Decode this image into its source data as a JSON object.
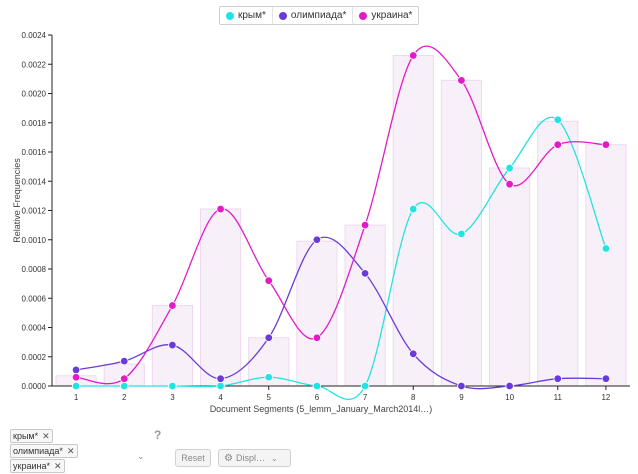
{
  "legend": [
    {
      "label": "крым*",
      "color": "#22e3e3"
    },
    {
      "label": "олимпиада*",
      "color": "#6a3bd8"
    },
    {
      "label": "украина*",
      "color": "#e31ac8"
    }
  ],
  "chart_data": {
    "type": "line",
    "xlabel": "Document Segments (5_lemm_January_March2014l…)",
    "ylabel": "Relative Frequencies",
    "ylim": [
      0,
      0.0024
    ],
    "yticks": [
      "0.0000",
      "0.0002",
      "0.0004",
      "0.0006",
      "0.0008",
      "0.0010",
      "0.0012",
      "0.0014",
      "0.0016",
      "0.0018",
      "0.0020",
      "0.0022",
      "0.0024"
    ],
    "x": [
      1,
      2,
      3,
      4,
      5,
      6,
      7,
      8,
      9,
      10,
      11,
      12
    ],
    "bar_values": [
      7e-05,
      0.00015,
      0.00055,
      0.00121,
      0.00033,
      0.00099,
      0.0011,
      0.00226,
      0.00209,
      0.00149,
      0.00181,
      0.00165
    ],
    "series": [
      {
        "name": "крым*",
        "color": "#22e3e3",
        "values": [
          0,
          0,
          0,
          0,
          6e-05,
          0,
          0,
          0.00121,
          0.00104,
          0.00149,
          0.00182,
          0.00094
        ]
      },
      {
        "name": "олимпиада*",
        "color": "#6a3bd8",
        "values": [
          0.00011,
          0.00017,
          0.00028,
          5e-05,
          0.00033,
          0.001,
          0.00077,
          0.00022,
          0,
          0,
          5e-05,
          5e-05
        ]
      },
      {
        "name": "украина*",
        "color": "#e31ac8",
        "values": [
          6e-05,
          5e-05,
          0.00055,
          0.00121,
          0.00072,
          0.00033,
          0.0011,
          0.00226,
          0.00209,
          0.00138,
          0.00165,
          0.00165
        ]
      }
    ],
    "grid": false,
    "legend_position": "top-center"
  },
  "controls": {
    "tags": [
      "крым*",
      "олимпиада*",
      "украина*"
    ],
    "tag_remove": "✕",
    "help": "?",
    "reset_label": "Reset",
    "display_label": "Displ…"
  }
}
